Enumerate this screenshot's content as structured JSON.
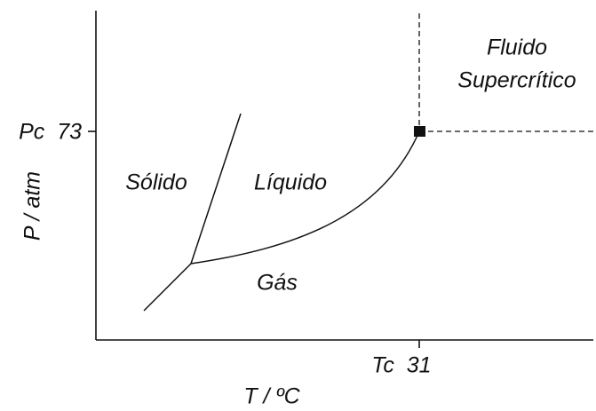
{
  "diagram": {
    "regions": {
      "solid": "Sólido",
      "liquid": "Líquido",
      "gas": "Gás",
      "supercritical": [
        "Fluido",
        "Supercrítico"
      ]
    },
    "axes": {
      "y_label": "P / atm",
      "x_label": "T / ºC",
      "y_tick": "Pc  73",
      "x_tick": "Tc  31"
    }
  }
}
